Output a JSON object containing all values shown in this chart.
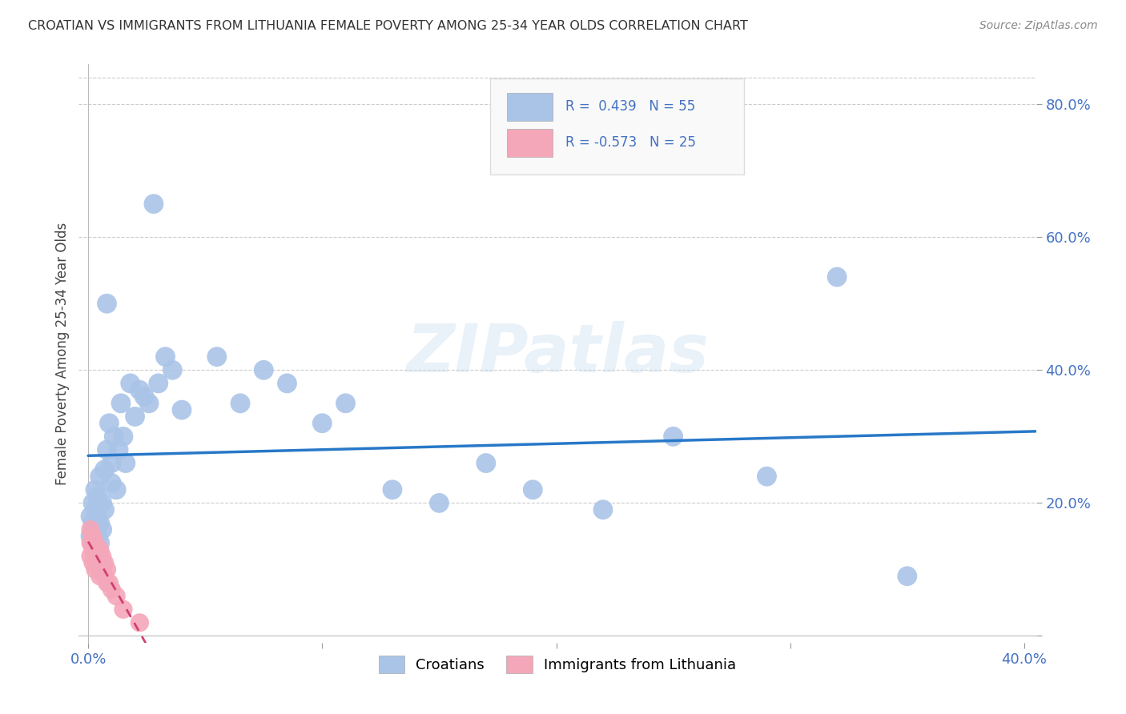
{
  "title": "CROATIAN VS IMMIGRANTS FROM LITHUANIA FEMALE POVERTY AMONG 25-34 YEAR OLDS CORRELATION CHART",
  "source": "Source: ZipAtlas.com",
  "ylabel": "Female Poverty Among 25-34 Year Olds",
  "xlim": [
    -0.004,
    0.405
  ],
  "ylim": [
    -0.01,
    0.86
  ],
  "grid_color": "#cccccc",
  "background_color": "#ffffff",
  "croatians_color": "#aac4e8",
  "lithuanians_color": "#f4a7b9",
  "croatians_line_color": "#2878c8",
  "lithuanians_line_color": "#d04070",
  "R_croatians": 0.439,
  "N_croatians": 55,
  "R_lithuanians": -0.573,
  "N_lithuanians": 25,
  "watermark": "ZIPatlas",
  "legend_label1": "Croatians",
  "legend_label2": "Immigrants from Lithuania"
}
